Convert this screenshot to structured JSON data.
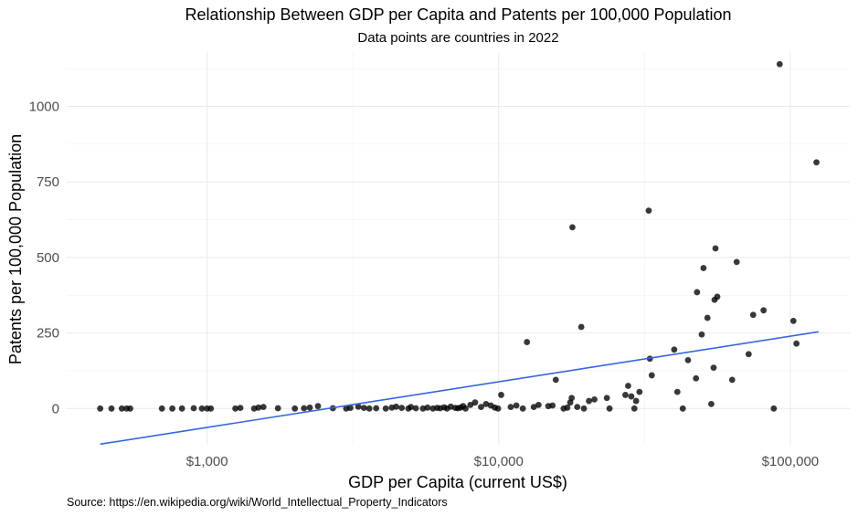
{
  "chart_data": {
    "type": "scatter",
    "title": "Relationship Between GDP per Capita and Patents per 100,000 Population",
    "subtitle": "Data points are countries in 2022",
    "caption": "Source: https://en.wikipedia.org/wiki/World_Intellectual_Property_Indicators",
    "xlabel": "GDP per Capita (current US$)",
    "ylabel": "Patents per 100,000 Population",
    "x_scale": "log10",
    "xlim": [
      330,
      160000
    ],
    "ylim": [
      -120,
      1180
    ],
    "x_ticks": [
      1000,
      10000,
      100000
    ],
    "x_tick_labels": [
      "$1,000",
      "$10,000",
      "$100,000"
    ],
    "y_ticks": [
      0,
      250,
      500,
      750,
      1000
    ],
    "y_tick_labels": [
      "0",
      "250",
      "500",
      "750",
      "1000"
    ],
    "grid": true,
    "legend": "none",
    "colors": {
      "points": "#000000",
      "trend": "#3366e0",
      "grid": "#ebebeb"
    },
    "trend_line": {
      "x": [
        430,
        125000
      ],
      "y": [
        -118,
        254
      ]
    },
    "points": [
      [
        430,
        0
      ],
      [
        470,
        0
      ],
      [
        510,
        0
      ],
      [
        530,
        0
      ],
      [
        545,
        0
      ],
      [
        700,
        0
      ],
      [
        760,
        0
      ],
      [
        820,
        0
      ],
      [
        900,
        1
      ],
      [
        960,
        0
      ],
      [
        1000,
        0
      ],
      [
        1030,
        0
      ],
      [
        1250,
        0
      ],
      [
        1300,
        2
      ],
      [
        1450,
        0
      ],
      [
        1500,
        3
      ],
      [
        1560,
        5
      ],
      [
        1750,
        1
      ],
      [
        2000,
        0
      ],
      [
        2150,
        1
      ],
      [
        2250,
        3
      ],
      [
        2400,
        8
      ],
      [
        2700,
        1
      ],
      [
        3000,
        0
      ],
      [
        3100,
        2
      ],
      [
        3300,
        6
      ],
      [
        3450,
        2
      ],
      [
        3600,
        0
      ],
      [
        3800,
        1
      ],
      [
        4100,
        0
      ],
      [
        4300,
        3
      ],
      [
        4450,
        6
      ],
      [
        4650,
        2
      ],
      [
        4900,
        0
      ],
      [
        5000,
        5
      ],
      [
        5200,
        1
      ],
      [
        5500,
        0
      ],
      [
        5700,
        3
      ],
      [
        5950,
        0
      ],
      [
        6150,
        2
      ],
      [
        6300,
        1
      ],
      [
        6500,
        4
      ],
      [
        6650,
        0
      ],
      [
        6850,
        6
      ],
      [
        7100,
        2
      ],
      [
        7250,
        1
      ],
      [
        7400,
        3
      ],
      [
        7550,
        8
      ],
      [
        7700,
        0
      ],
      [
        8000,
        12
      ],
      [
        8300,
        20
      ],
      [
        8700,
        5
      ],
      [
        9050,
        15
      ],
      [
        9400,
        10
      ],
      [
        9700,
        3
      ],
      [
        9950,
        0
      ],
      [
        10200,
        45
      ],
      [
        11000,
        5
      ],
      [
        11500,
        10
      ],
      [
        12100,
        0
      ],
      [
        12500,
        220
      ],
      [
        13200,
        5
      ],
      [
        13700,
        12
      ],
      [
        14800,
        8
      ],
      [
        15300,
        10
      ],
      [
        15700,
        95
      ],
      [
        16700,
        0
      ],
      [
        17200,
        3
      ],
      [
        17600,
        20
      ],
      [
        17800,
        35
      ],
      [
        17900,
        600
      ],
      [
        18600,
        5
      ],
      [
        19200,
        270
      ],
      [
        19600,
        0
      ],
      [
        20400,
        25
      ],
      [
        21300,
        30
      ],
      [
        23500,
        35
      ],
      [
        24000,
        0
      ],
      [
        27200,
        45
      ],
      [
        27800,
        75
      ],
      [
        28500,
        40
      ],
      [
        29200,
        0
      ],
      [
        29600,
        25
      ],
      [
        30400,
        55
      ],
      [
        32700,
        655
      ],
      [
        33000,
        165
      ],
      [
        33500,
        110
      ],
      [
        40000,
        195
      ],
      [
        41000,
        55
      ],
      [
        42800,
        0
      ],
      [
        44600,
        160
      ],
      [
        47500,
        100
      ],
      [
        47900,
        385
      ],
      [
        49700,
        245
      ],
      [
        50400,
        465
      ],
      [
        52000,
        300
      ],
      [
        53600,
        15
      ],
      [
        54600,
        135
      ],
      [
        55000,
        360
      ],
      [
        55400,
        530
      ],
      [
        56200,
        370
      ],
      [
        63200,
        95
      ],
      [
        65500,
        485
      ],
      [
        72000,
        180
      ],
      [
        74600,
        310
      ],
      [
        81000,
        325
      ],
      [
        87800,
        0
      ],
      [
        92000,
        1140
      ],
      [
        102500,
        290
      ],
      [
        105000,
        215
      ],
      [
        123000,
        815
      ]
    ]
  }
}
